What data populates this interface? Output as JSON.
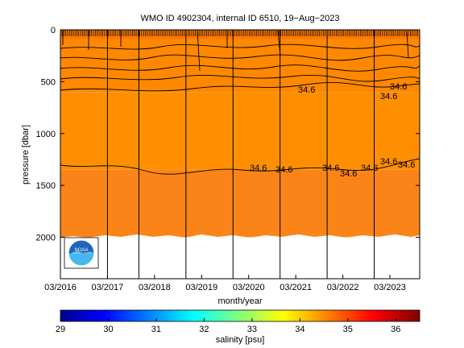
{
  "chart_data": {
    "type": "heatmap",
    "title": "WMO ID 4902304, internal ID 6510, 19−Aug−2023",
    "xlabel": "month/year",
    "ylabel": "pressure [dbar]",
    "x_ticks": [
      "03/2016",
      "03/2017",
      "03/2018",
      "03/2019",
      "03/2020",
      "03/2021",
      "03/2022",
      "03/2023"
    ],
    "x_range": [
      "2016-03",
      "2023-08"
    ],
    "y_ticks": [
      0,
      500,
      1000,
      1500,
      2000
    ],
    "ylim": [
      2400,
      0
    ],
    "y_reversed": true,
    "data_max_pressure": 2000,
    "colorbar": {
      "label": "salinity [psu]",
      "ticks": [
        29,
        30,
        31,
        32,
        33,
        34,
        35,
        36
      ],
      "range": [
        29,
        36.5
      ],
      "colormap": "jet"
    },
    "salinity_layers": [
      {
        "pressure_range": [
          0,
          100
        ],
        "salinity": 34.2,
        "color": "#ff7b00"
      },
      {
        "pressure_range": [
          100,
          600
        ],
        "salinity": 34.4,
        "color": "#ff8800"
      },
      {
        "pressure_range": [
          600,
          1350
        ],
        "salinity": 34.5,
        "color": "#ff8f00"
      },
      {
        "pressure_range": [
          1350,
          2000
        ],
        "salinity": 34.6,
        "color": "#fb8418"
      }
    ],
    "contour_labels": [
      "34.6",
      "34.6",
      "34.6",
      "34.6",
      "34.6",
      "34.6",
      "34.6",
      "34.6",
      "34.6",
      "34.6"
    ],
    "vertical_lines": [
      "03/2017",
      "11/2017",
      "11/2018",
      "11/2019",
      "11/2020",
      "11/2021",
      "11/2022"
    ],
    "grid": false,
    "logo": "noaa-logo"
  }
}
